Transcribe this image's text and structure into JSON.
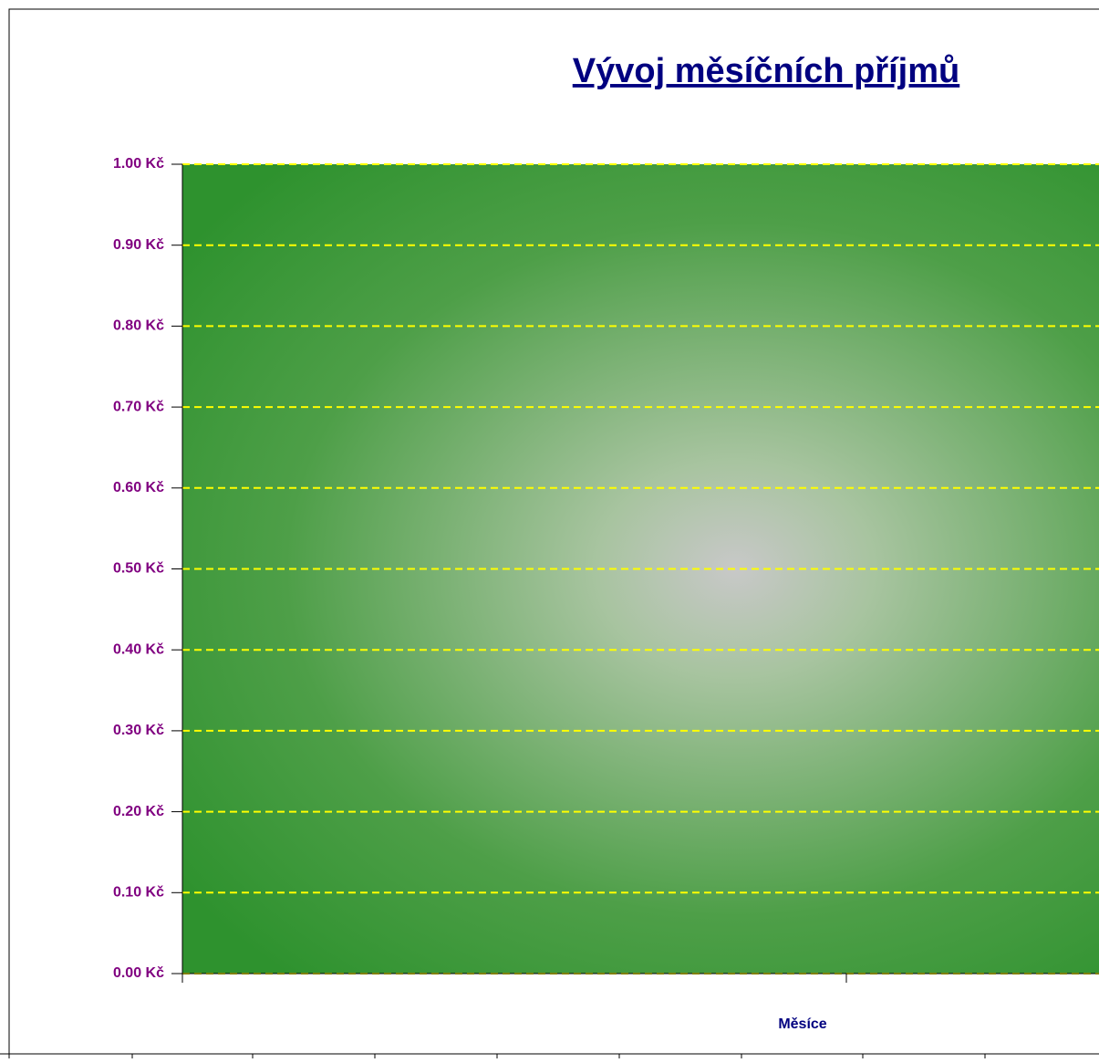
{
  "chart_data": {
    "type": "bar",
    "title": "Vývoj měsíčních příjmů",
    "x_label": "Měsíce",
    "categories": [],
    "values": [],
    "ylim": [
      0,
      1
    ],
    "yticks": [
      {
        "value": 0,
        "label": "0.00 Kč"
      },
      {
        "value": 0.1,
        "label": "0.10 Kč"
      },
      {
        "value": 0.2,
        "label": "0.20 Kč"
      },
      {
        "value": 0.3,
        "label": "0.30 Kč"
      },
      {
        "value": 0.4,
        "label": "0.40 Kč"
      },
      {
        "value": 0.5,
        "label": "0.50 Kč"
      },
      {
        "value": 0.6,
        "label": "0.60 Kč"
      },
      {
        "value": 0.7,
        "label": "0.70 Kč"
      },
      {
        "value": 0.8,
        "label": "0.80 Kč"
      },
      {
        "value": 0.9,
        "label": "0.90 Kč"
      },
      {
        "value": 1,
        "label": "1.00 Kč"
      }
    ],
    "grid": true,
    "grid_color": "#ffff00",
    "color": "#3a9a3a"
  }
}
